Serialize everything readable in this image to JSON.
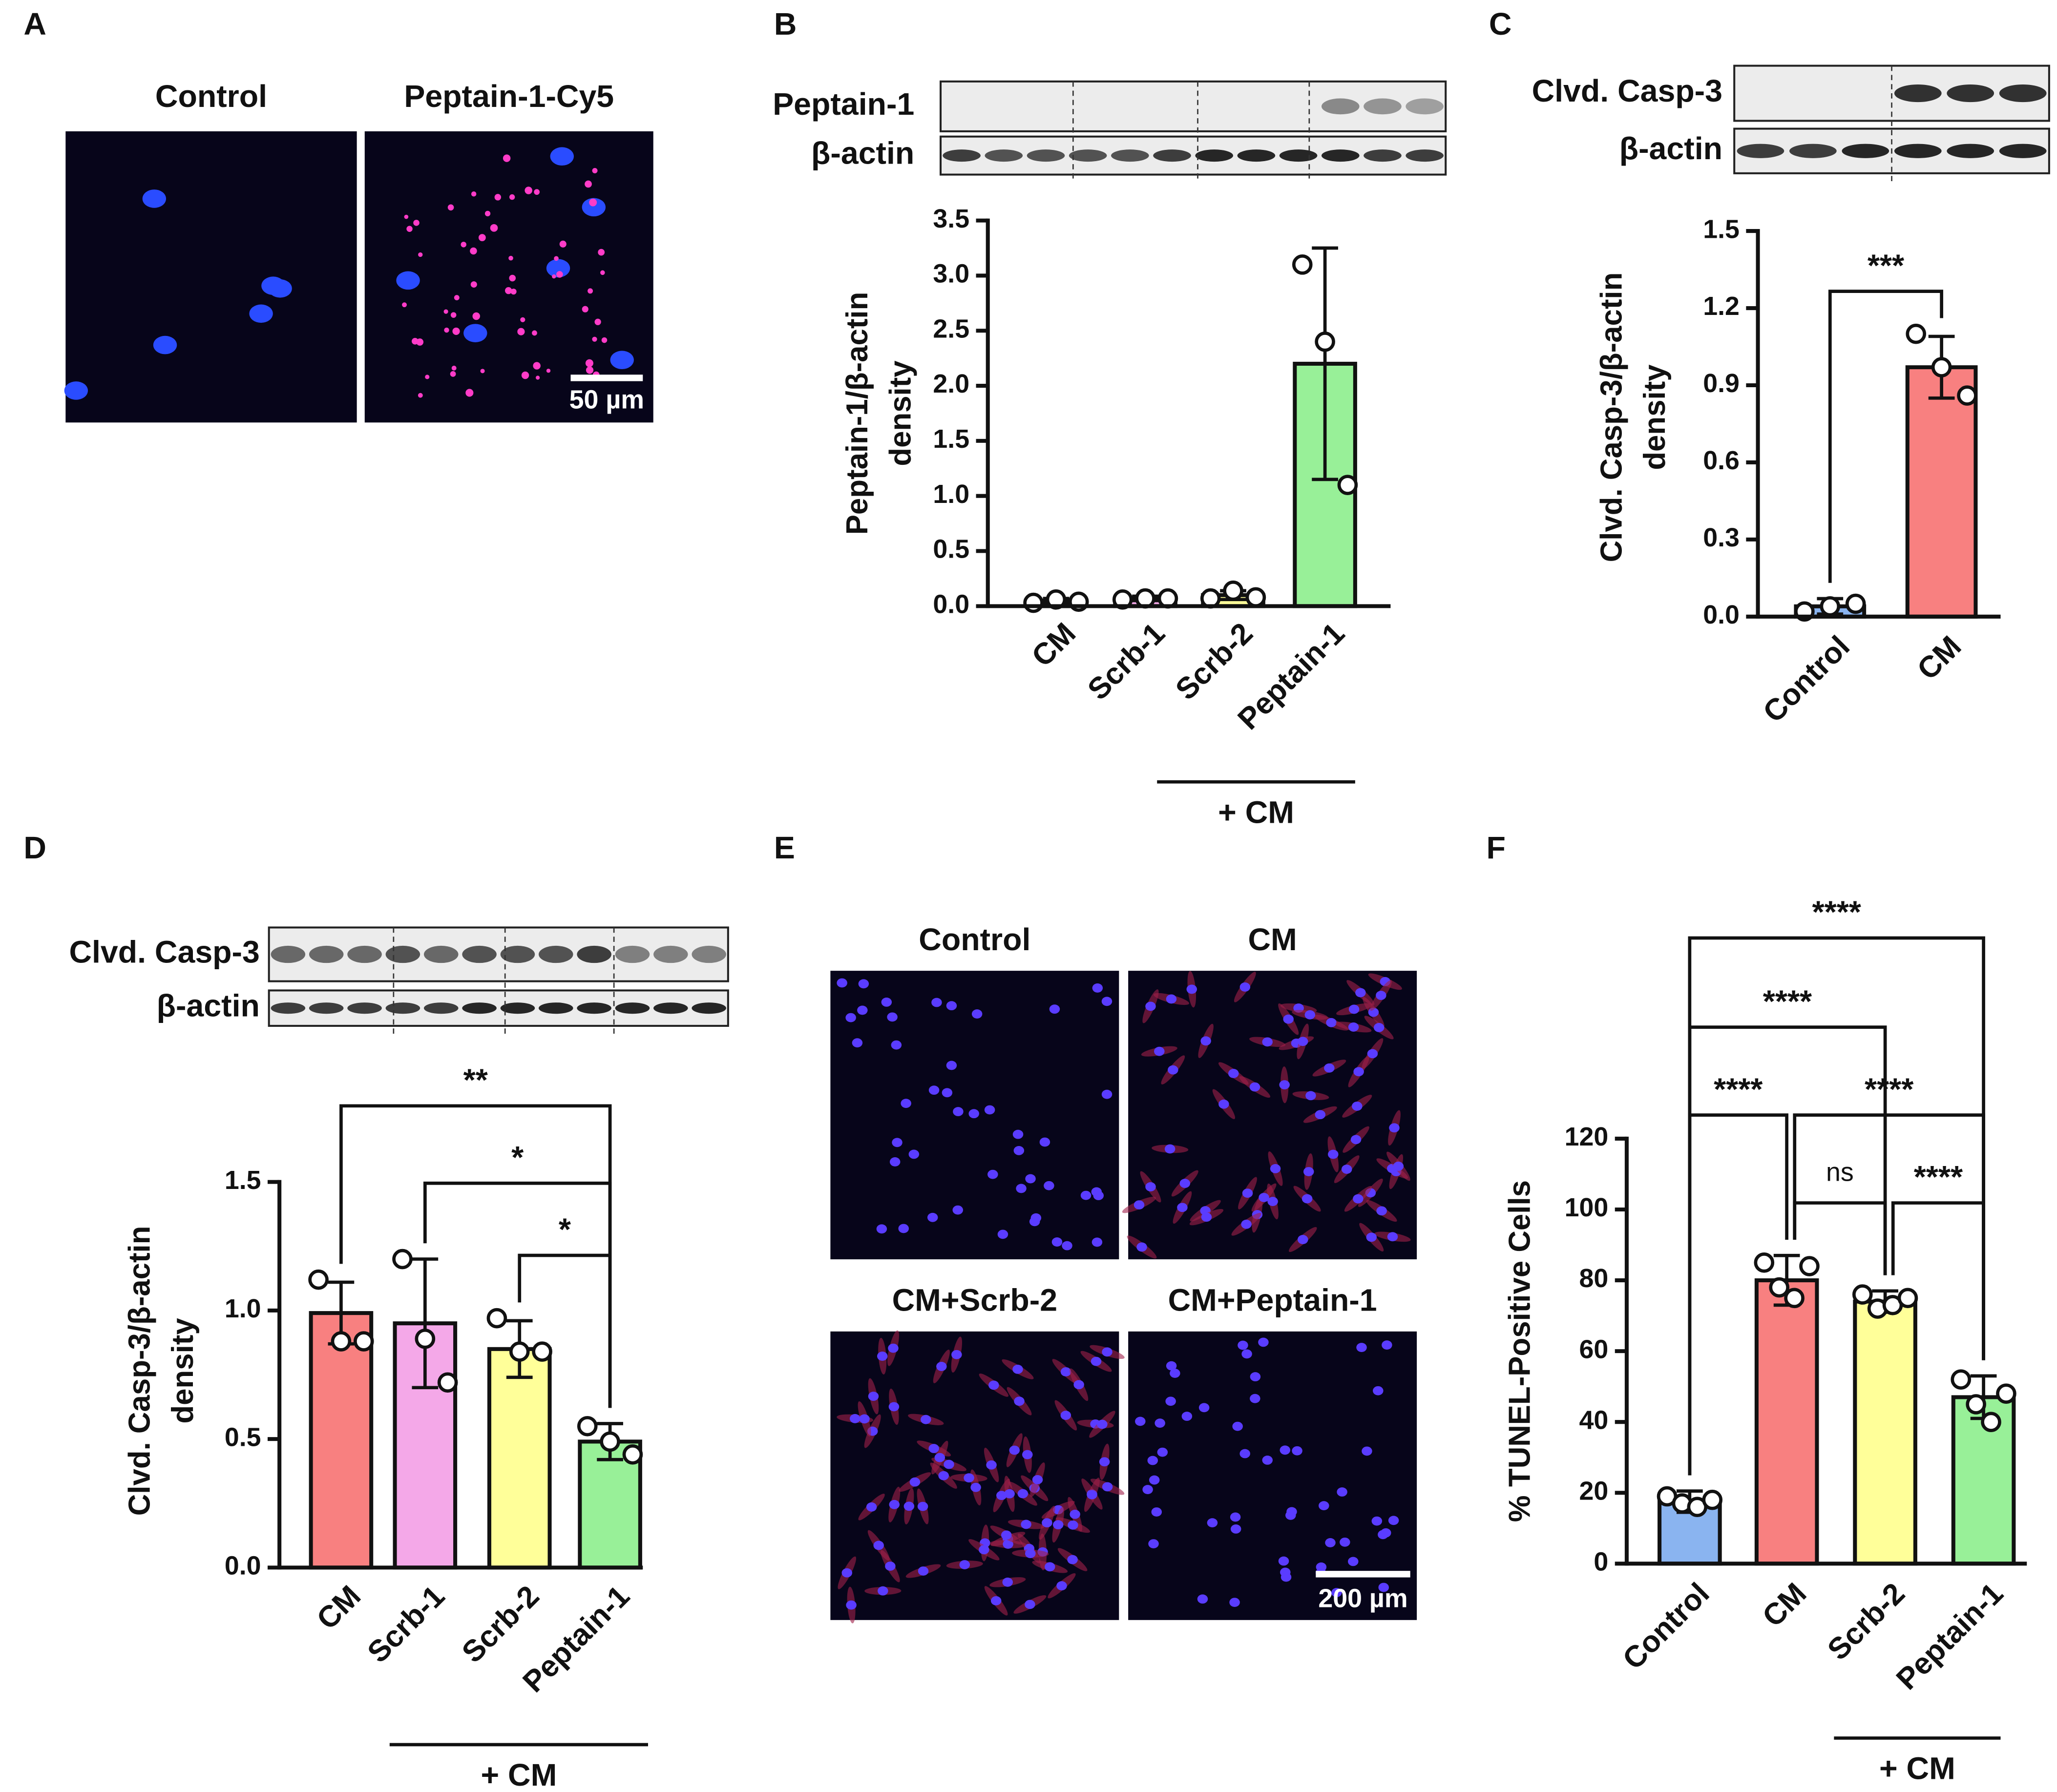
{
  "images": [
    {
      "panel": "A",
      "titles": [
        "Control",
        "Peptain-1-Cy5"
      ],
      "scale_bar": "50 µm"
    },
    {
      "panel": "E",
      "titles": [
        "Control",
        "CM",
        "CM+Scrb-2",
        "CM+Peptain-1"
      ],
      "scale_bar": "200 µm"
    }
  ],
  "chart_data": [
    {
      "panel": "B",
      "type": "bar",
      "blot_labels": [
        "Peptain-1",
        "β-actin"
      ],
      "y_label": [
        "Peptain-1/β-actin",
        "density"
      ],
      "categories": [
        "CM",
        "Scrb-1",
        "Scrb-2",
        "Peptain-1"
      ],
      "colors": [
        "#f88080",
        "#f4a8e8",
        "#ffff99",
        "#98f098"
      ],
      "values": [
        0.05,
        0.07,
        0.1,
        2.2
      ],
      "errors": [
        0.02,
        0.02,
        0.04,
        1.05
      ],
      "points": [
        [
          0.03,
          0.06,
          0.04
        ],
        [
          0.06,
          0.07,
          0.07
        ],
        [
          0.07,
          0.14,
          0.08
        ],
        [
          3.1,
          2.4,
          1.1
        ]
      ],
      "ylim": [
        0,
        3.5
      ],
      "yticks": [
        {
          "value": 0,
          "label": "0.0"
        },
        0.5,
        {
          "value": 1,
          "label": "1.0"
        },
        1.5,
        {
          "value": 2,
          "label": "2.0"
        },
        2.5,
        {
          "value": 3,
          "label": "3.0"
        },
        3.5
      ],
      "significance": [],
      "group_label": "+ CM"
    },
    {
      "panel": "C",
      "type": "bar",
      "blot_labels": [
        "Clvd. Casp-3",
        "β-actin"
      ],
      "y_label": [
        "Clvd. Casp-3/β-actin",
        "density"
      ],
      "categories": [
        "Control",
        "CM"
      ],
      "colors": [
        "#8ab4f0",
        "#f88080"
      ],
      "values": [
        0.04,
        0.97
      ],
      "errors": [
        0.03,
        0.12
      ],
      "points": [
        [
          0.02,
          0.04,
          0.05
        ],
        [
          1.1,
          0.97,
          0.86
        ]
      ],
      "ylim": [
        0,
        1.5
      ],
      "yticks": [
        {
          "value": 0,
          "label": "0.0"
        },
        0.3,
        0.6,
        0.9,
        1.2,
        1.5
      ],
      "significance": [
        {
          "pair": [
            0,
            1
          ],
          "label": "***"
        }
      ]
    },
    {
      "panel": "D",
      "type": "bar",
      "blot_labels": [
        "Clvd. Casp-3",
        "β-actin"
      ],
      "y_label": [
        "Clvd. Casp-3/β-actin",
        "density"
      ],
      "categories": [
        "CM",
        "Scrb-1",
        "Scrb-2",
        "Peptain-1"
      ],
      "colors": [
        "#f88080",
        "#f4a8e8",
        "#ffff99",
        "#98f098"
      ],
      "values": [
        0.99,
        0.95,
        0.85,
        0.49
      ],
      "errors": [
        0.12,
        0.25,
        0.11,
        0.07
      ],
      "points": [
        [
          1.12,
          0.88,
          0.88
        ],
        [
          1.2,
          0.89,
          0.72
        ],
        [
          0.97,
          0.84,
          0.84
        ],
        [
          0.55,
          0.49,
          0.44
        ]
      ],
      "ylim": [
        0,
        1.5
      ],
      "yticks": [
        {
          "value": 0,
          "label": "0.0"
        },
        0.5,
        {
          "value": 1,
          "label": "1.0"
        },
        1.5
      ],
      "significance": [
        {
          "pair": [
            0,
            3
          ],
          "label": "**"
        },
        {
          "pair": [
            1,
            3
          ],
          "label": "*"
        },
        {
          "pair": [
            2,
            3
          ],
          "label": "*"
        }
      ],
      "group_label": "+ CM"
    },
    {
      "panel": "F",
      "type": "bar",
      "y_label": [
        "% TUNEL-Positive Cells"
      ],
      "categories": [
        "Control",
        "CM",
        "Scrb-2",
        "Peptain-1"
      ],
      "colors": [
        "#8ab4f0",
        "#f88080",
        "#ffff99",
        "#98f098"
      ],
      "values": [
        17.5,
        80,
        74,
        47
      ],
      "errors": [
        3,
        7,
        3,
        6
      ],
      "points": [
        [
          19,
          17,
          16,
          18
        ],
        [
          85,
          78,
          75,
          84
        ],
        [
          76,
          72,
          73,
          75
        ],
        [
          52,
          45,
          40,
          48
        ]
      ],
      "ylim": [
        0,
        120
      ],
      "yticks": [
        0,
        20,
        40,
        60,
        80,
        100,
        120
      ],
      "significance": [
        {
          "pair": [
            0,
            3
          ],
          "label": "****"
        },
        {
          "pair": [
            0,
            2
          ],
          "label": "****"
        },
        {
          "pair": [
            0,
            1
          ],
          "label": "****"
        },
        {
          "pair": [
            1,
            3
          ],
          "label": "****"
        },
        {
          "pair": [
            1,
            2
          ],
          "label": "ns"
        },
        {
          "pair": [
            2,
            3
          ],
          "label": "****"
        }
      ],
      "group_label": "+ CM"
    }
  ]
}
